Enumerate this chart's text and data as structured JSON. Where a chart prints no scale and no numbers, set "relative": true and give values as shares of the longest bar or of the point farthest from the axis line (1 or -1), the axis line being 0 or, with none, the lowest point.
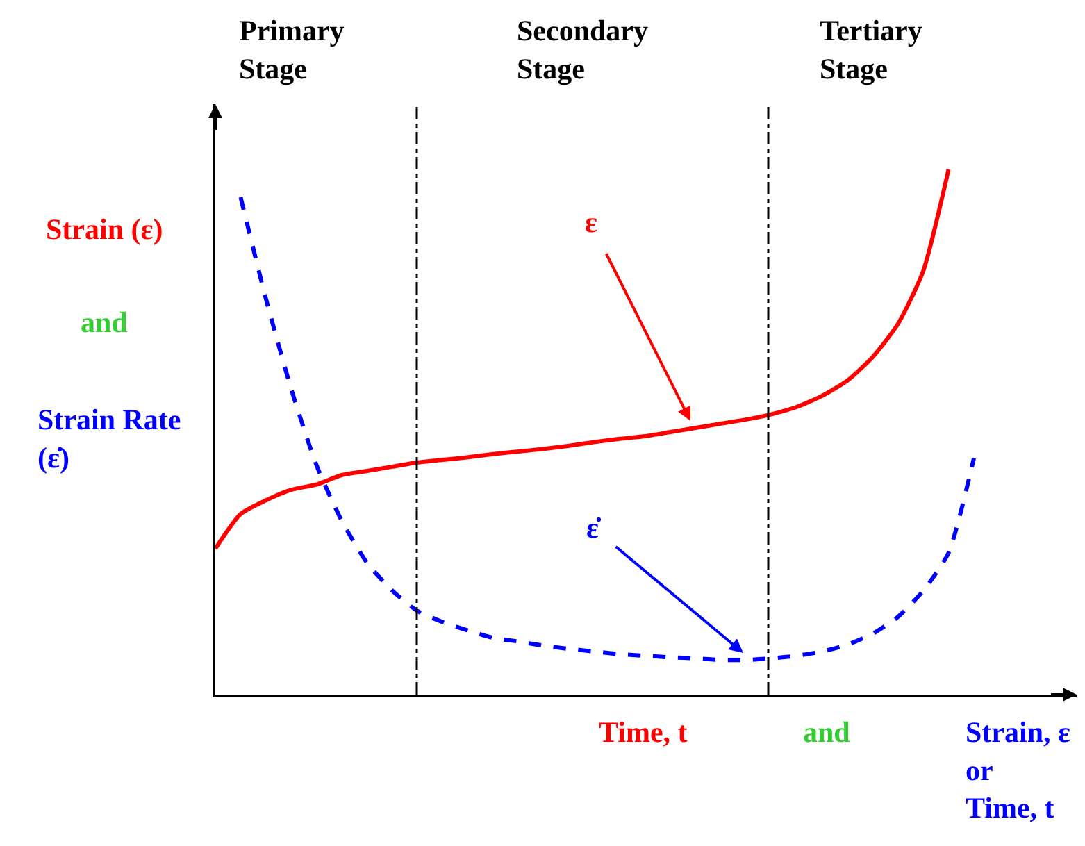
{
  "chart_data": {
    "type": "line",
    "relative": true,
    "marker": "none",
    "categories": [
      null,
      null,
      null,
      null,
      null,
      null,
      null,
      null,
      null,
      null,
      null,
      null,
      null,
      null,
      null,
      null,
      null,
      null,
      null,
      null,
      null,
      null,
      null,
      null,
      null,
      null,
      null,
      null,
      null,
      null,
      null
    ],
    "series": [
      {
        "color": "#ff0000",
        "line_style": "solid",
        "values": [
          0.278,
          0.344,
          0.37,
          0.39,
          0.4,
          0.418,
          0.426,
          0.434,
          0.442,
          0.447,
          0.452,
          0.458,
          0.463,
          0.468,
          0.474,
          0.481,
          0.487,
          0.492,
          0.5,
          0.508,
          0.516,
          0.524,
          0.534,
          0.548,
          0.569,
          0.598,
          0.643,
          0.706,
          0.807,
          1,
          null
        ]
      },
      {
        "color": "#0000ff",
        "line_style": "dashed",
        "values": [
          null,
          0.947,
          0.754,
          0.582,
          0.437,
          0.331,
          0.251,
          0.198,
          0.159,
          0.138,
          0.122,
          0.108,
          0.101,
          0.093,
          0.087,
          0.082,
          0.077,
          0.074,
          0.071,
          0.069,
          0.066,
          0.066,
          0.069,
          0.074,
          0.082,
          0.095,
          0.116,
          0.148,
          0.198,
          0.27,
          0.45
        ]
      }
    ],
    "annotations": [
      "Primary\nStage",
      "Secondary\nStage",
      "Tertiary\nStage",
      "Strain (ε)",
      "and",
      "Strain Rate\n(ε̇)",
      "ε",
      "ε̇",
      "Time, t",
      "and",
      "Strain, ε\nor\nTime, t"
    ]
  }
}
